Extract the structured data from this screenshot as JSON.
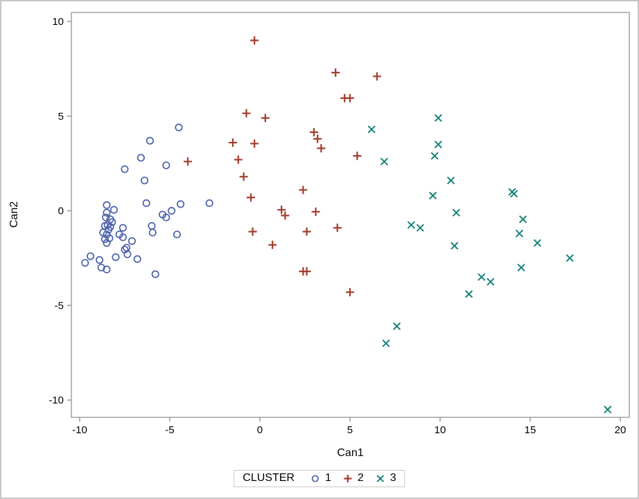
{
  "figure": {
    "background": "#ffffff",
    "outer_border_color": "#c6c6c6",
    "frame_color": "#9b9b9b",
    "tick_color": "#8f8f8f",
    "text_color": "#000000"
  },
  "chart_data": {
    "type": "scatter",
    "title": "",
    "xlabel": "Can1",
    "ylabel": "Can2",
    "xlim": [
      -10.46,
      20.5
    ],
    "ylim": [
      -10.91,
      10.475
    ],
    "x_ticks": [
      -10,
      -5,
      0,
      5,
      10,
      15,
      20
    ],
    "y_ticks": [
      -10,
      -5,
      0,
      5,
      10
    ],
    "grid": false,
    "legend": {
      "title": "CLUSTER",
      "position": "bottom-center"
    },
    "series": [
      {
        "name": "1",
        "marker": "circle",
        "color": "#4B61AA",
        "points": [
          [
            -4.5,
            4.4
          ],
          [
            -6.1,
            3.7
          ],
          [
            -6.6,
            2.8
          ],
          [
            -5.2,
            2.4
          ],
          [
            -7.5,
            2.2
          ],
          [
            -6.4,
            1.6
          ],
          [
            -6.3,
            0.4
          ],
          [
            -8.5,
            0.3
          ],
          [
            -8.1,
            0.05
          ],
          [
            -8.5,
            -0.1
          ],
          [
            -8.3,
            -0.45
          ],
          [
            -4.4,
            0.35
          ],
          [
            -2.8,
            0.4
          ],
          [
            -4.9,
            0.0
          ],
          [
            -5.4,
            -0.2
          ],
          [
            -5.2,
            -0.35
          ],
          [
            -8.6,
            -0.8
          ],
          [
            -8.45,
            -0.75
          ],
          [
            -8.3,
            -0.85
          ],
          [
            -7.6,
            -0.9
          ],
          [
            -8.7,
            -1.15
          ],
          [
            -8.5,
            -1.25
          ],
          [
            -6.0,
            -0.8
          ],
          [
            -5.95,
            -1.15
          ],
          [
            -7.8,
            -1.25
          ],
          [
            -8.6,
            -1.5
          ],
          [
            -8.5,
            -1.7
          ],
          [
            -7.6,
            -1.4
          ],
          [
            -4.6,
            -1.25
          ],
          [
            -7.1,
            -1.6
          ],
          [
            -7.4,
            -1.95
          ],
          [
            -7.5,
            -2.05
          ],
          [
            -7.35,
            -2.3
          ],
          [
            -9.4,
            -2.4
          ],
          [
            -9.7,
            -2.75
          ],
          [
            -8.9,
            -2.6
          ],
          [
            -8.0,
            -2.45
          ],
          [
            -6.8,
            -2.55
          ],
          [
            -8.8,
            -3.0
          ],
          [
            -8.5,
            -3.1
          ],
          [
            -5.8,
            -3.35
          ],
          [
            -8.4,
            -1.0
          ],
          [
            -8.2,
            -0.6
          ],
          [
            -8.35,
            -1.45
          ],
          [
            -8.55,
            -0.35
          ]
        ]
      },
      {
        "name": "2",
        "marker": "plus",
        "color": "#A23B2B",
        "points": [
          [
            -0.3,
            9.0
          ],
          [
            4.2,
            7.3
          ],
          [
            6.5,
            7.1
          ],
          [
            4.7,
            5.95
          ],
          [
            5.0,
            5.95
          ],
          [
            -0.75,
            5.15
          ],
          [
            0.3,
            4.9
          ],
          [
            3.0,
            4.15
          ],
          [
            3.2,
            3.8
          ],
          [
            3.4,
            3.3
          ],
          [
            -1.5,
            3.6
          ],
          [
            -0.3,
            3.55
          ],
          [
            -4.0,
            2.6
          ],
          [
            5.4,
            2.9
          ],
          [
            -1.2,
            2.7
          ],
          [
            -0.9,
            1.8
          ],
          [
            2.4,
            1.1
          ],
          [
            -0.5,
            0.7
          ],
          [
            1.2,
            0.05
          ],
          [
            1.4,
            -0.25
          ],
          [
            3.1,
            -0.05
          ],
          [
            4.3,
            -0.9
          ],
          [
            -0.4,
            -1.1
          ],
          [
            2.6,
            -1.1
          ],
          [
            0.7,
            -1.8
          ],
          [
            2.4,
            -3.2
          ],
          [
            2.6,
            -3.2
          ],
          [
            5.0,
            -4.3
          ]
        ]
      },
      {
        "name": "3",
        "marker": "x",
        "color": "#17827B",
        "points": [
          [
            9.9,
            4.9
          ],
          [
            6.2,
            4.3
          ],
          [
            9.9,
            3.5
          ],
          [
            9.7,
            2.9
          ],
          [
            6.9,
            2.6
          ],
          [
            10.6,
            1.6
          ],
          [
            9.6,
            0.8
          ],
          [
            14.0,
            1.0
          ],
          [
            14.1,
            0.9
          ],
          [
            10.9,
            -0.1
          ],
          [
            8.4,
            -0.75
          ],
          [
            8.9,
            -0.9
          ],
          [
            14.6,
            -0.45
          ],
          [
            14.4,
            -1.2
          ],
          [
            15.4,
            -1.7
          ],
          [
            10.8,
            -1.85
          ],
          [
            17.2,
            -2.5
          ],
          [
            14.5,
            -3.0
          ],
          [
            12.3,
            -3.5
          ],
          [
            12.8,
            -3.75
          ],
          [
            11.6,
            -4.4
          ],
          [
            7.6,
            -6.1
          ],
          [
            7.0,
            -7.0
          ],
          [
            19.3,
            -10.5
          ]
        ]
      }
    ]
  }
}
